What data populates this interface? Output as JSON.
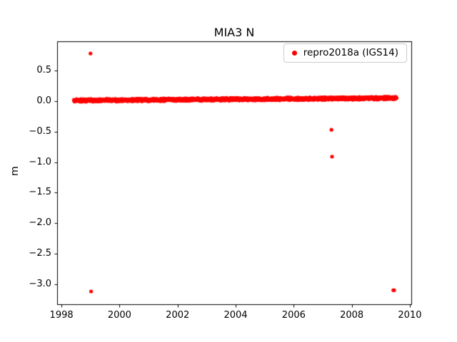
{
  "figure": {
    "background": "#ffffff"
  },
  "chart_data": {
    "type": "scatter",
    "title": "MIA3 N",
    "xlabel": "",
    "ylabel": "m",
    "xlim": [
      1997.85,
      2010.05
    ],
    "ylim": [
      -3.33,
      0.98
    ],
    "xticks": [
      1998,
      2000,
      2002,
      2004,
      2006,
      2008,
      2010
    ],
    "yticks": [
      0.5,
      0.0,
      -0.5,
      -1.0,
      -1.5,
      -2.0,
      -2.5,
      -3.0
    ],
    "grid": false,
    "legend": {
      "position": "upper right",
      "entries": [
        {
          "label": "repro2018a (IGS14)",
          "marker": "dot",
          "color": "#ff0000"
        }
      ]
    },
    "series": [
      {
        "name": "repro2018a (IGS14)",
        "color": "#ff0000",
        "marker": "circle",
        "dense_band": {
          "x_start": 1998.42,
          "x_end": 2009.55,
          "n_points": 3200,
          "y_mean_start": 0.01,
          "y_mean_end": 0.05,
          "y_jitter": 0.03,
          "description": "near-continuous daily position estimates forming a flat band just above 0 m"
        },
        "outliers": [
          {
            "x": 1999.0,
            "y": 0.78
          },
          {
            "x": 1999.02,
            "y": -3.12
          },
          {
            "x": 2007.3,
            "y": -0.47
          },
          {
            "x": 2007.32,
            "y": -0.91
          },
          {
            "x": 2009.43,
            "y": -3.1
          },
          {
            "x": 2009.46,
            "y": -3.1
          }
        ]
      }
    ]
  }
}
